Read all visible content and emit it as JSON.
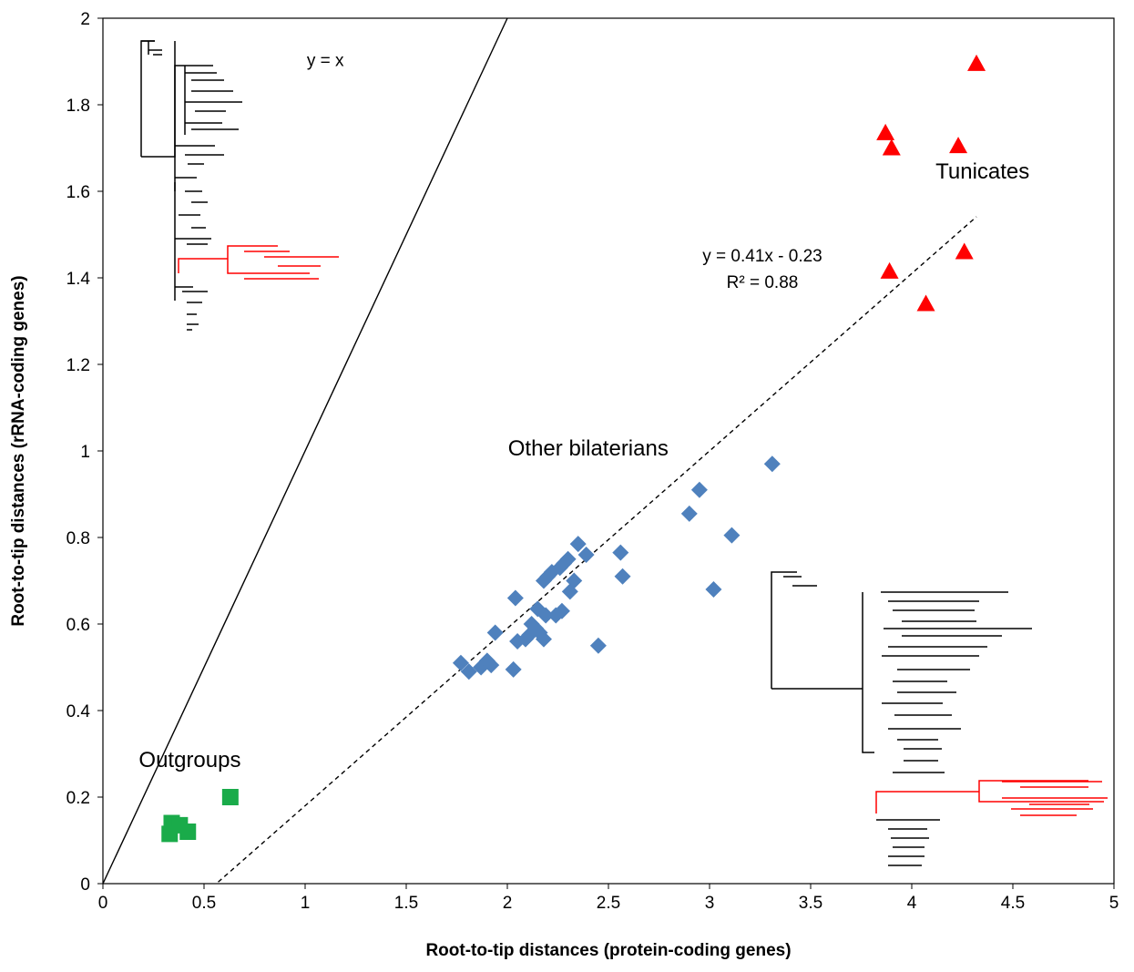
{
  "chart_data": {
    "type": "scatter",
    "title": "",
    "xlabel": "Root-to-tip distances (protein-coding genes)",
    "ylabel": "Root-to-tip distances (rRNA-coding genes)",
    "xlim": [
      0,
      5
    ],
    "ylim": [
      0,
      2
    ],
    "x_ticks": [
      "0",
      "0.5",
      "1",
      "1.5",
      "2",
      "2.5",
      "3",
      "3.5",
      "4",
      "4.5",
      "5"
    ],
    "y_ticks": [
      "0",
      "0.2",
      "0.4",
      "0.6",
      "0.8",
      "1",
      "1.2",
      "1.4",
      "1.6",
      "1.8",
      "2"
    ],
    "grid": false,
    "legend": "none",
    "series": [
      {
        "name": "Outgroups",
        "marker": "square",
        "color": "#1aab4a",
        "points": [
          [
            0.34,
            0.14
          ],
          [
            0.38,
            0.135
          ],
          [
            0.42,
            0.12
          ],
          [
            0.33,
            0.115
          ],
          [
            0.63,
            0.2
          ]
        ]
      },
      {
        "name": "Other bilaterians",
        "marker": "diamond",
        "color": "#4f81bd",
        "points": [
          [
            1.77,
            0.51
          ],
          [
            1.81,
            0.49
          ],
          [
            1.87,
            0.5
          ],
          [
            1.9,
            0.515
          ],
          [
            1.92,
            0.505
          ],
          [
            1.94,
            0.58
          ],
          [
            2.03,
            0.495
          ],
          [
            2.04,
            0.66
          ],
          [
            2.05,
            0.56
          ],
          [
            2.09,
            0.565
          ],
          [
            2.11,
            0.575
          ],
          [
            2.12,
            0.6
          ],
          [
            2.14,
            0.59
          ],
          [
            2.15,
            0.635
          ],
          [
            2.16,
            0.58
          ],
          [
            2.18,
            0.565
          ],
          [
            2.19,
            0.62
          ],
          [
            2.18,
            0.7
          ],
          [
            2.2,
            0.71
          ],
          [
            2.22,
            0.72
          ],
          [
            2.24,
            0.62
          ],
          [
            2.26,
            0.73
          ],
          [
            2.27,
            0.63
          ],
          [
            2.28,
            0.74
          ],
          [
            2.3,
            0.75
          ],
          [
            2.31,
            0.675
          ],
          [
            2.33,
            0.7
          ],
          [
            2.35,
            0.785
          ],
          [
            2.39,
            0.76
          ],
          [
            2.45,
            0.55
          ],
          [
            2.56,
            0.765
          ],
          [
            2.57,
            0.71
          ],
          [
            2.9,
            0.855
          ],
          [
            2.95,
            0.91
          ],
          [
            3.02,
            0.68
          ],
          [
            3.11,
            0.805
          ],
          [
            3.31,
            0.97
          ]
        ]
      },
      {
        "name": "Tunicates",
        "marker": "triangle",
        "color": "#ff0000",
        "points": [
          [
            4.32,
            1.895
          ],
          [
            3.87,
            1.735
          ],
          [
            3.9,
            1.7
          ],
          [
            4.23,
            1.705
          ],
          [
            4.26,
            1.46
          ],
          [
            3.89,
            1.415
          ],
          [
            4.07,
            1.34
          ]
        ]
      }
    ],
    "lines": [
      {
        "label": "y = x",
        "slope": 1,
        "intercept": 0,
        "style": "solid",
        "x_range": [
          0,
          2
        ]
      },
      {
        "label": "y = 0.41x - 0.23",
        "r2_label": "R² = 0.88",
        "slope": 0.41,
        "intercept": -0.23,
        "style": "dashed",
        "x_range": [
          0.57,
          4.32
        ]
      }
    ],
    "annotations": [
      {
        "text": "Outgroups",
        "x": 0.43,
        "y": 0.27
      },
      {
        "text": "Other bilaterians",
        "x": 2.4,
        "y": 0.99
      },
      {
        "text": "Tunicates",
        "x": 4.35,
        "y": 1.63
      },
      {
        "text": "y = x",
        "x": 1.1,
        "y": 1.89
      }
    ],
    "equation_text": "y = 0.41x - 0.23",
    "r2_text": "R² = 0.88"
  }
}
